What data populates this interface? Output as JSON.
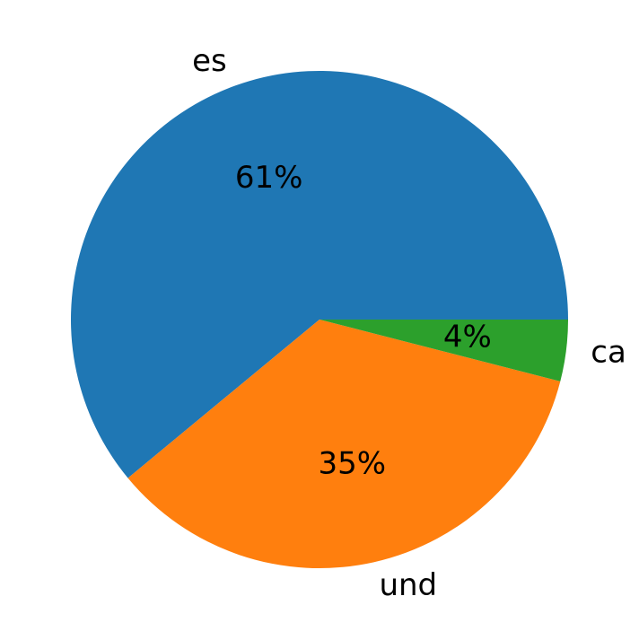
{
  "chart_data": {
    "type": "pie",
    "start_angle_deg": 0,
    "direction": "counterclockwise",
    "slices": [
      {
        "label": "es",
        "value": 61,
        "pct_label": "61%",
        "color": "#1f77b4"
      },
      {
        "label": "und",
        "value": 35,
        "pct_label": "35%",
        "color": "#ff7f0e"
      },
      {
        "label": "ca",
        "value": 4,
        "pct_label": "4%",
        "color": "#2ca02c"
      }
    ]
  }
}
